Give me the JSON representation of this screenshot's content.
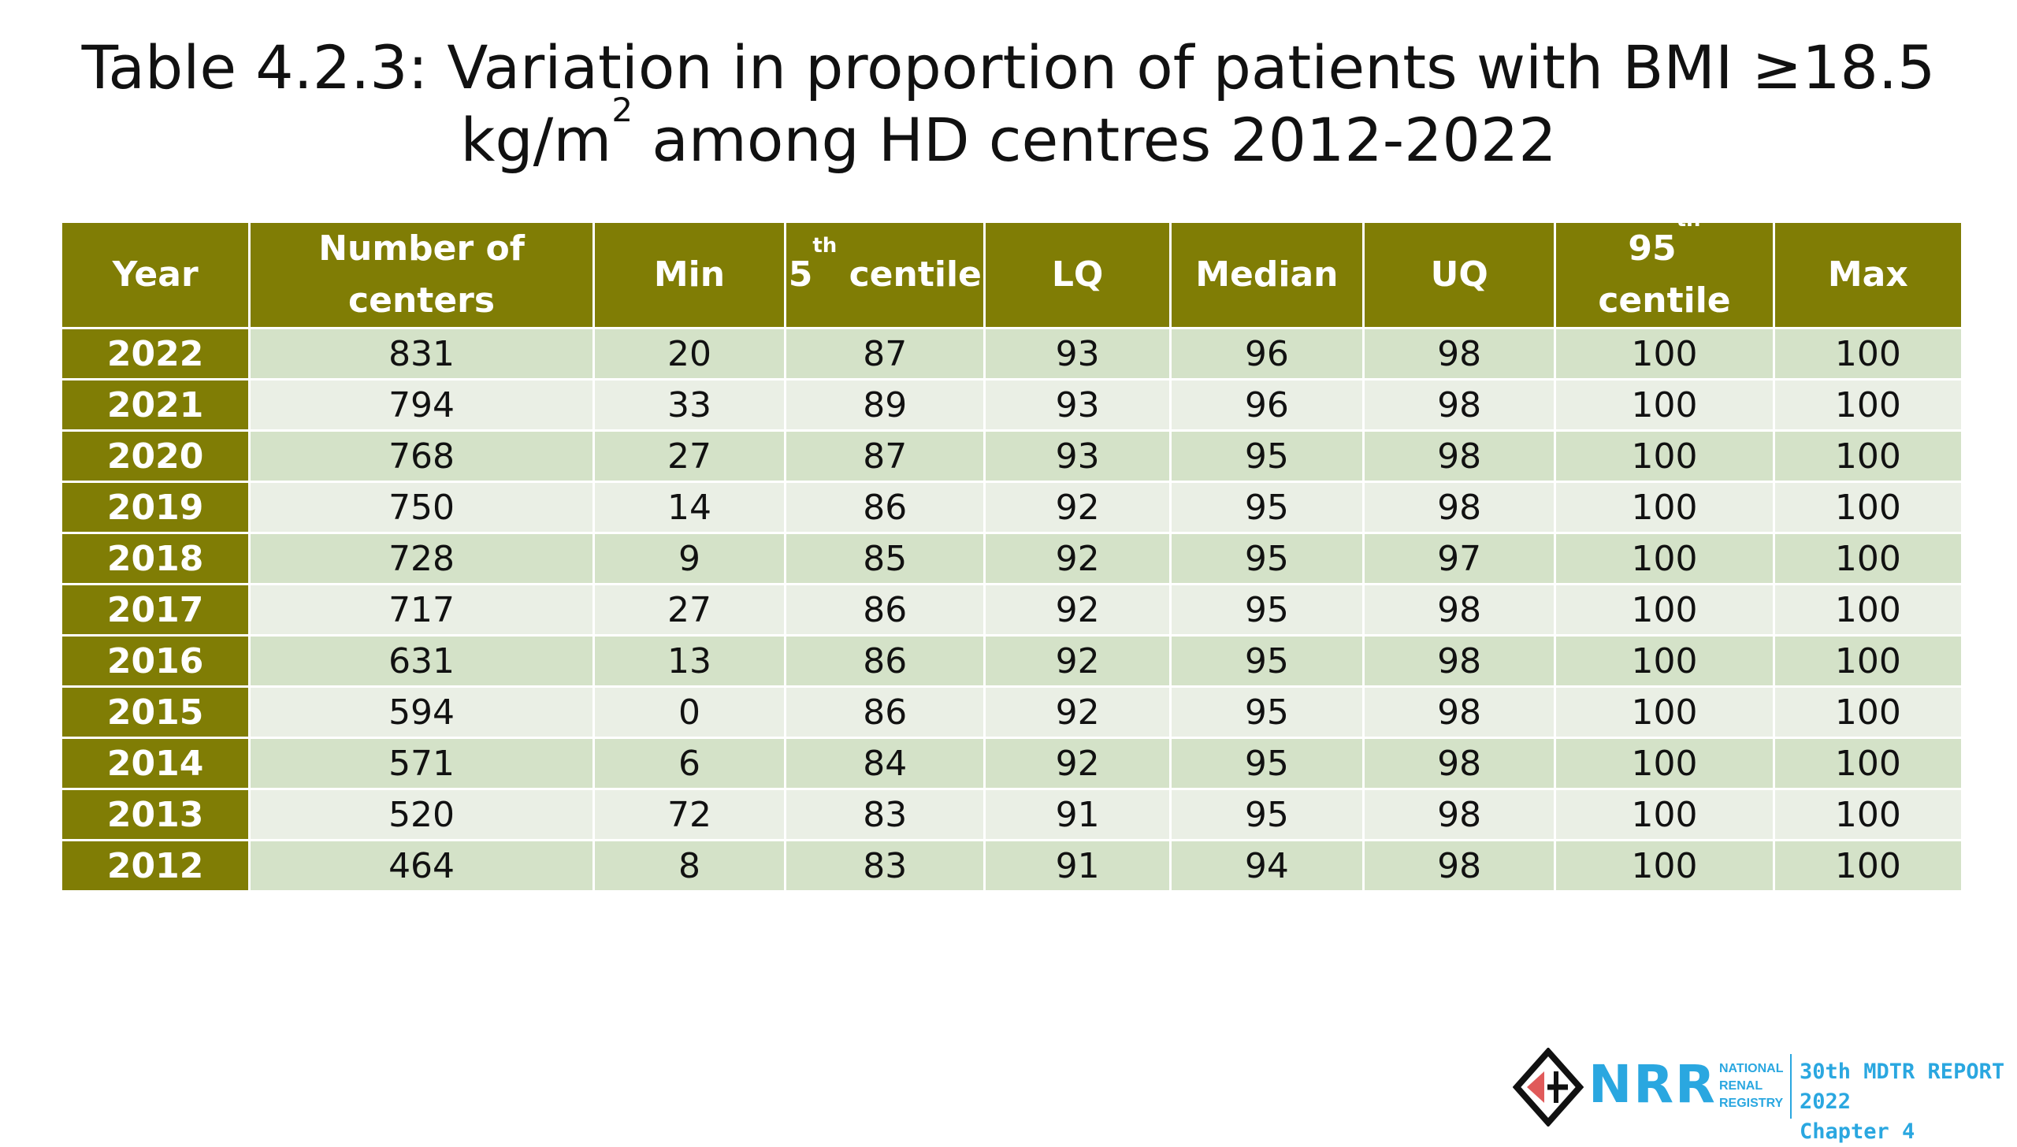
{
  "title": {
    "line1": "Table 4.2.3: Variation in proportion of patients with BMI ≥18.5",
    "line2_prefix": "kg/m",
    "line2_sup": "2",
    "line2_suffix": " among HD centres 2012-2022"
  },
  "table": {
    "headers": {
      "year": "Year",
      "number_of_centers": "Number of centers",
      "min": "Min",
      "p5_base": "5",
      "p5_sup": "th",
      "p5_suffix": " centile",
      "lq": "LQ",
      "median": "Median",
      "uq": "UQ",
      "p95_base": "95",
      "p95_sup": "th",
      "p95_suffix": " centile",
      "max": "Max"
    },
    "rows": [
      {
        "year": "2022",
        "n": "831",
        "min": "20",
        "p5": "87",
        "lq": "93",
        "median": "96",
        "uq": "98",
        "p95": "100",
        "max": "100"
      },
      {
        "year": "2021",
        "n": "794",
        "min": "33",
        "p5": "89",
        "lq": "93",
        "median": "96",
        "uq": "98",
        "p95": "100",
        "max": "100"
      },
      {
        "year": "2020",
        "n": "768",
        "min": "27",
        "p5": "87",
        "lq": "93",
        "median": "95",
        "uq": "98",
        "p95": "100",
        "max": "100"
      },
      {
        "year": "2019",
        "n": "750",
        "min": "14",
        "p5": "86",
        "lq": "92",
        "median": "95",
        "uq": "98",
        "p95": "100",
        "max": "100"
      },
      {
        "year": "2018",
        "n": "728",
        "min": "9",
        "p5": "85",
        "lq": "92",
        "median": "95",
        "uq": "97",
        "p95": "100",
        "max": "100"
      },
      {
        "year": "2017",
        "n": "717",
        "min": "27",
        "p5": "86",
        "lq": "92",
        "median": "95",
        "uq": "98",
        "p95": "100",
        "max": "100"
      },
      {
        "year": "2016",
        "n": "631",
        "min": "13",
        "p5": "86",
        "lq": "92",
        "median": "95",
        "uq": "98",
        "p95": "100",
        "max": "100"
      },
      {
        "year": "2015",
        "n": "594",
        "min": "0",
        "p5": "86",
        "lq": "92",
        "median": "95",
        "uq": "98",
        "p95": "100",
        "max": "100"
      },
      {
        "year": "2014",
        "n": "571",
        "min": "6",
        "p5": "84",
        "lq": "92",
        "median": "95",
        "uq": "98",
        "p95": "100",
        "max": "100"
      },
      {
        "year": "2013",
        "n": "520",
        "min": "72",
        "p5": "83",
        "lq": "91",
        "median": "95",
        "uq": "98",
        "p95": "100",
        "max": "100"
      },
      {
        "year": "2012",
        "n": "464",
        "min": "8",
        "p5": "83",
        "lq": "91",
        "median": "94",
        "uq": "98",
        "p95": "100",
        "max": "100"
      }
    ]
  },
  "footer": {
    "logo_icon": "registry-emblem-icon",
    "logo_mark": "NRR",
    "org_line1": "NATIONAL",
    "org_line2": "RENAL",
    "org_line3": "REGISTRY",
    "report_line1": "30th MDTR REPORT 2022",
    "report_line2": "Chapter 4"
  },
  "colors": {
    "header_bg": "#807d05",
    "row_odd": "#d4e2c8",
    "row_even": "#eaefe5",
    "brand_blue": "#2aa7e0"
  }
}
